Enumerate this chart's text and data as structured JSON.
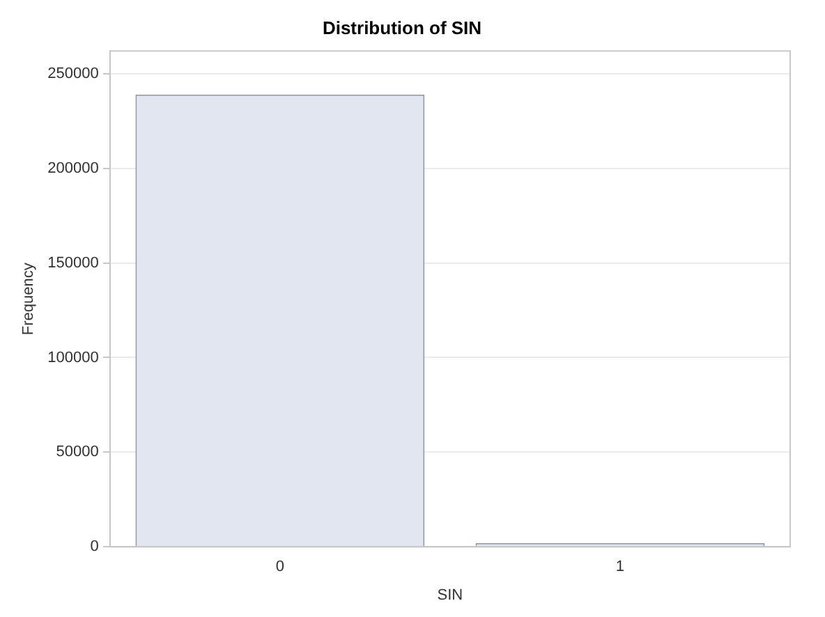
{
  "chart_data": {
    "type": "bar",
    "title": "Distribution of SIN",
    "xlabel": "SIN",
    "ylabel": "Frequency",
    "categories": [
      "0",
      "1"
    ],
    "values": [
      239000,
      2000
    ],
    "color": "#e1e6f0",
    "ylim": [
      0,
      262000
    ],
    "yticks": [
      0,
      50000,
      100000,
      150000,
      200000,
      250000
    ],
    "grid": "y"
  }
}
